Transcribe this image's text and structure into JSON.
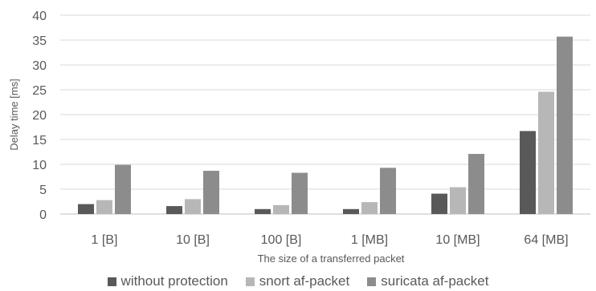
{
  "chart_data": {
    "type": "bar",
    "title": "",
    "xlabel": "The size of a transferred packet",
    "ylabel": "Delay time [ms]",
    "ylim": [
      0,
      40
    ],
    "yticks": [
      0,
      5,
      10,
      15,
      20,
      25,
      30,
      35,
      40
    ],
    "grid": true,
    "legend_position": "bottom",
    "categories": [
      "1 [B]",
      "10 [B]",
      "100 [B]",
      "1 [MB]",
      "10 [MB]",
      "64 [MB]"
    ],
    "series": [
      {
        "name": "without protection",
        "color": "#595959",
        "values": [
          2.0,
          1.6,
          1.0,
          1.0,
          4.1,
          16.7
        ]
      },
      {
        "name": "snort af-packet",
        "color": "#b7b7b7",
        "values": [
          2.8,
          3.0,
          1.8,
          2.4,
          5.4,
          24.6
        ]
      },
      {
        "name": "suricata af-packet",
        "color": "#8c8c8c",
        "values": [
          9.9,
          8.7,
          8.3,
          9.3,
          12.1,
          35.7
        ]
      }
    ]
  }
}
